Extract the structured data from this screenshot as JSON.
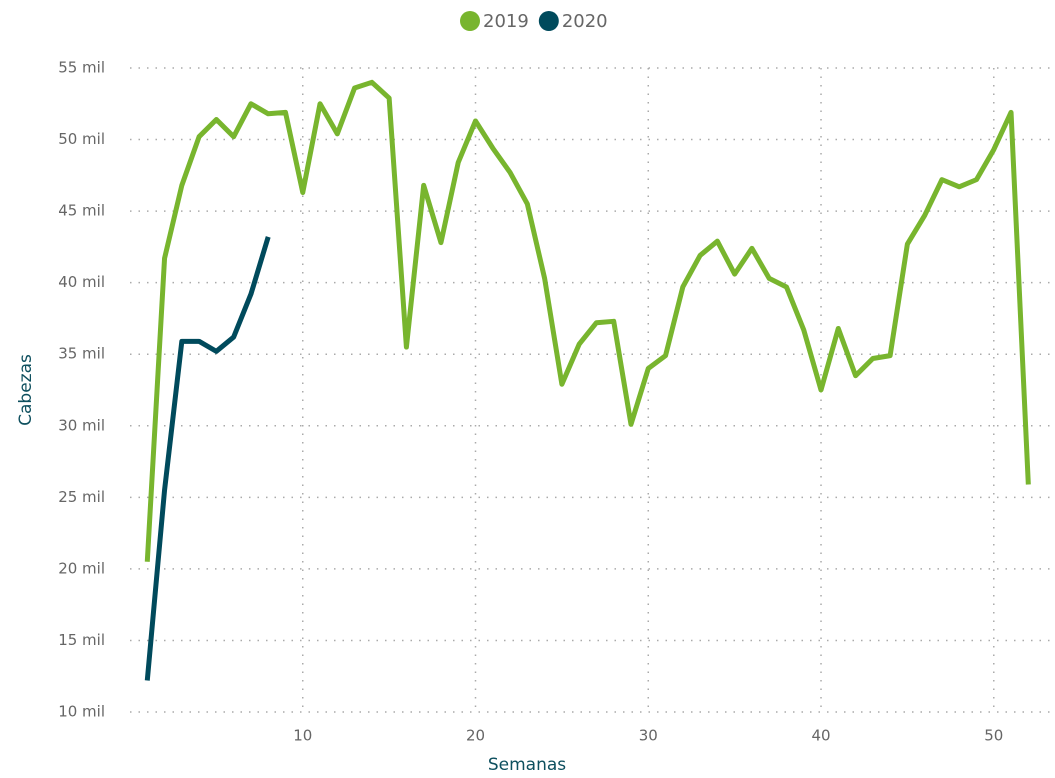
{
  "chart_data": {
    "type": "line",
    "x_label": "Semanas",
    "y_label": "Cabezas",
    "x": [
      1,
      2,
      3,
      4,
      5,
      6,
      7,
      8,
      9,
      10,
      11,
      12,
      13,
      14,
      15,
      16,
      17,
      18,
      19,
      20,
      21,
      22,
      23,
      24,
      25,
      26,
      27,
      28,
      29,
      30,
      31,
      32,
      33,
      34,
      35,
      36,
      37,
      38,
      39,
      40,
      41,
      42,
      43,
      44,
      45,
      46,
      47,
      48,
      49,
      50,
      51,
      52
    ],
    "series": [
      {
        "name": "2019",
        "color": "#78b52e",
        "values": [
          20500,
          41700,
          46800,
          50200,
          51400,
          50200,
          52500,
          51800,
          51900,
          46300,
          52500,
          50400,
          53600,
          54000,
          52900,
          35500,
          46800,
          42800,
          48400,
          51300,
          49400,
          47700,
          45500,
          40300,
          32900,
          35700,
          37200,
          37300,
          30100,
          34000,
          34900,
          39700,
          41900,
          42900,
          40600,
          42400,
          40300,
          39700,
          36700,
          32500,
          36800,
          33500,
          34700,
          34900,
          42700,
          44700,
          47200,
          46700,
          47200,
          49300,
          51900,
          25900
        ]
      },
      {
        "name": "2020",
        "color": "#004a5c",
        "values": [
          12200,
          25500,
          35900,
          35900,
          35200,
          36200,
          39200,
          43200,
          null,
          null,
          null,
          null,
          null,
          null,
          null,
          null,
          null,
          null,
          null,
          null,
          null,
          null,
          null,
          null,
          null,
          null,
          null,
          null,
          null,
          null,
          null,
          null,
          null,
          null,
          null,
          null,
          null,
          null,
          null,
          null,
          null,
          null,
          null,
          null,
          null,
          null,
          null,
          null,
          null,
          null,
          null,
          null
        ]
      }
    ],
    "xlim": [
      0,
      53
    ],
    "xticks": [
      10,
      20,
      30,
      40,
      50
    ],
    "ylim": [
      10000,
      55000
    ],
    "yticks": [
      {
        "value": 10000,
        "label": "10 mil"
      },
      {
        "value": 15000,
        "label": "15 mil"
      },
      {
        "value": 20000,
        "label": "20 mil"
      },
      {
        "value": 25000,
        "label": "25 mil"
      },
      {
        "value": 30000,
        "label": "30 mil"
      },
      {
        "value": 35000,
        "label": "35 mil"
      },
      {
        "value": 40000,
        "label": "40 mil"
      },
      {
        "value": 45000,
        "label": "45 mil"
      },
      {
        "value": 50000,
        "label": "50 mil"
      },
      {
        "value": 55000,
        "label": "55 mil"
      }
    ],
    "grid": true,
    "legend": "top"
  }
}
